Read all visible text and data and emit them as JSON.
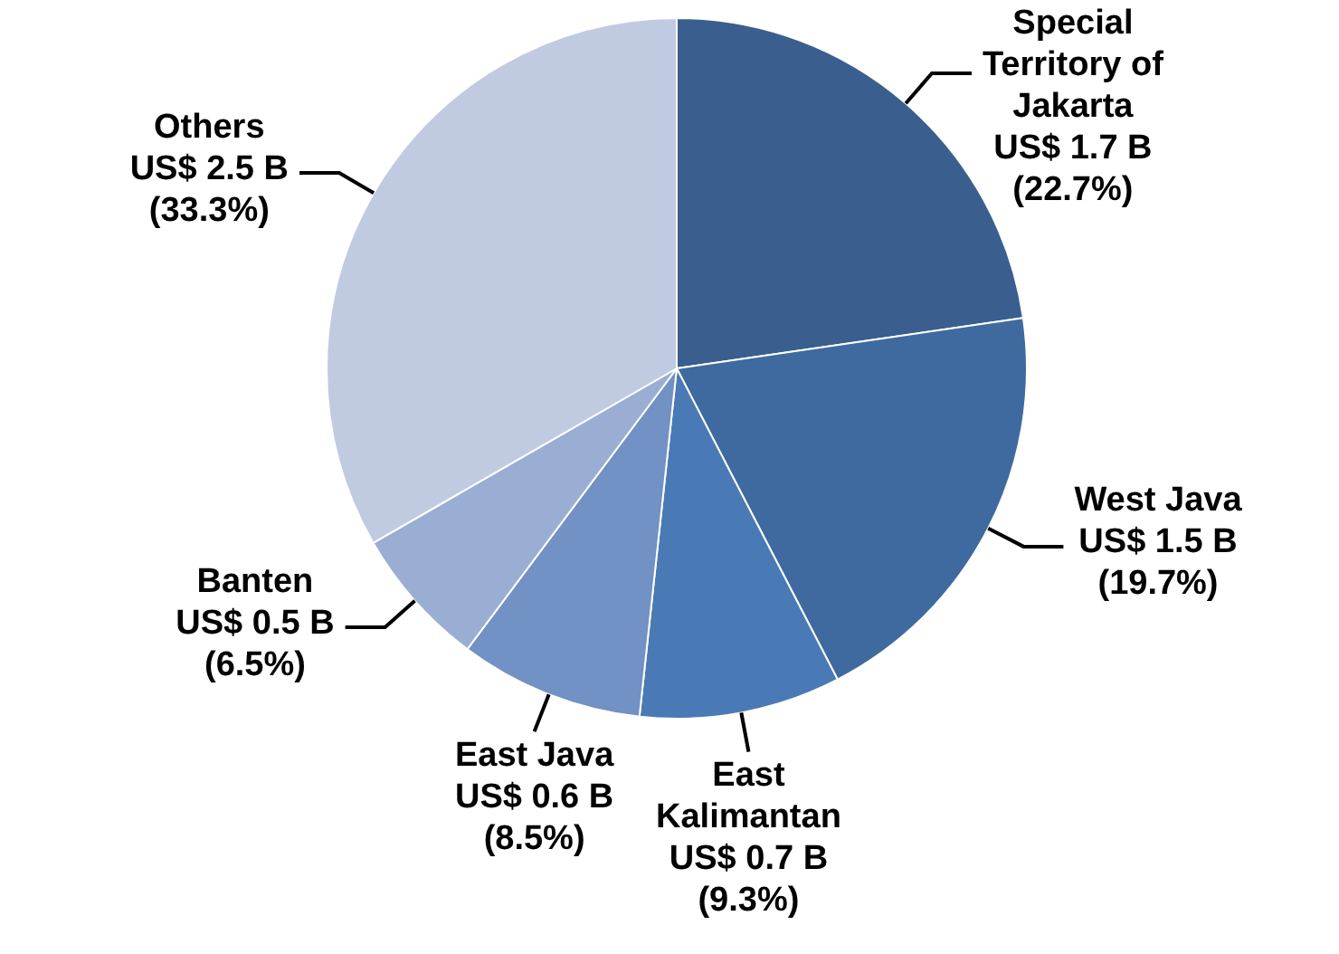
{
  "chart_data": {
    "type": "pie",
    "categories": [
      "Special Territory of Jakarta",
      "West Java",
      "East Kalimantan",
      "East Java",
      "Banten",
      "Others"
    ],
    "values": [
      22.7,
      19.7,
      9.3,
      8.5,
      6.5,
      33.3
    ],
    "value_labels": [
      "US$ 1.7 B\n(22.7%)",
      "US$ 1.5 B\n(19.7%)",
      "US$ 0.7 B\n(9.3%)",
      "US$ 0.6 B\n(8.5%)",
      "US$ 0.5 B\n(6.5%)",
      "US$ 2.5 B\n(33.3%)"
    ],
    "colors": [
      "#3a5f8f",
      "#3f6aa0",
      "#4a7ab5",
      "#7291c4",
      "#9aaed4",
      "#c0cbe2"
    ],
    "legend": false
  }
}
